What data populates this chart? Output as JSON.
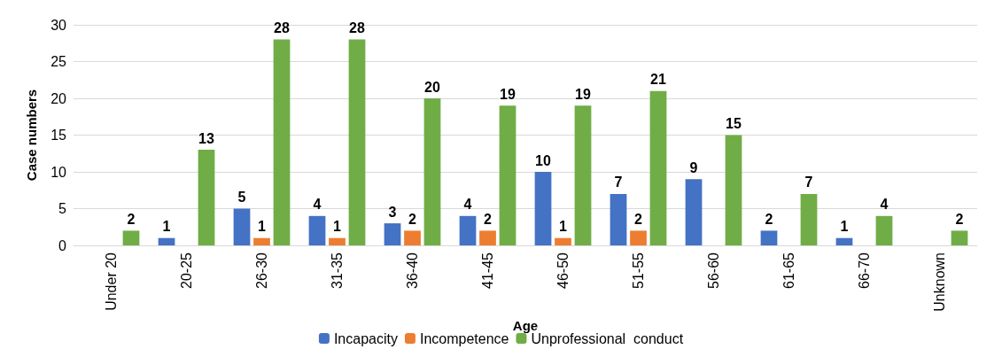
{
  "chart_data": {
    "type": "bar",
    "xlabel": "Age",
    "ylabel": "Case numbers",
    "categories": [
      "Under 20",
      "20-25",
      "26-30",
      "31-35",
      "36-40",
      "41-45",
      "46-50",
      "51-55",
      "56-60",
      "61-65",
      "66-70",
      "Unknown"
    ],
    "series": [
      {
        "name": "Incapacity",
        "color": "#4472c4",
        "values": [
          null,
          1,
          5,
          4,
          3,
          4,
          10,
          7,
          9,
          2,
          1,
          null
        ]
      },
      {
        "name": "Incompetence",
        "color": "#ed7d31",
        "values": [
          null,
          null,
          1,
          1,
          2,
          2,
          1,
          2,
          null,
          null,
          null,
          null
        ]
      },
      {
        "name": "Unprofessional  conduct",
        "color": "#70ad47",
        "values": [
          2,
          13,
          28,
          28,
          20,
          19,
          19,
          21,
          15,
          7,
          4,
          2
        ]
      }
    ],
    "ylim": [
      0,
      30
    ],
    "yticks": [
      0,
      5,
      10,
      15,
      20,
      25,
      30
    ],
    "grid": "y",
    "legend": "bottom",
    "data_labels": true
  }
}
